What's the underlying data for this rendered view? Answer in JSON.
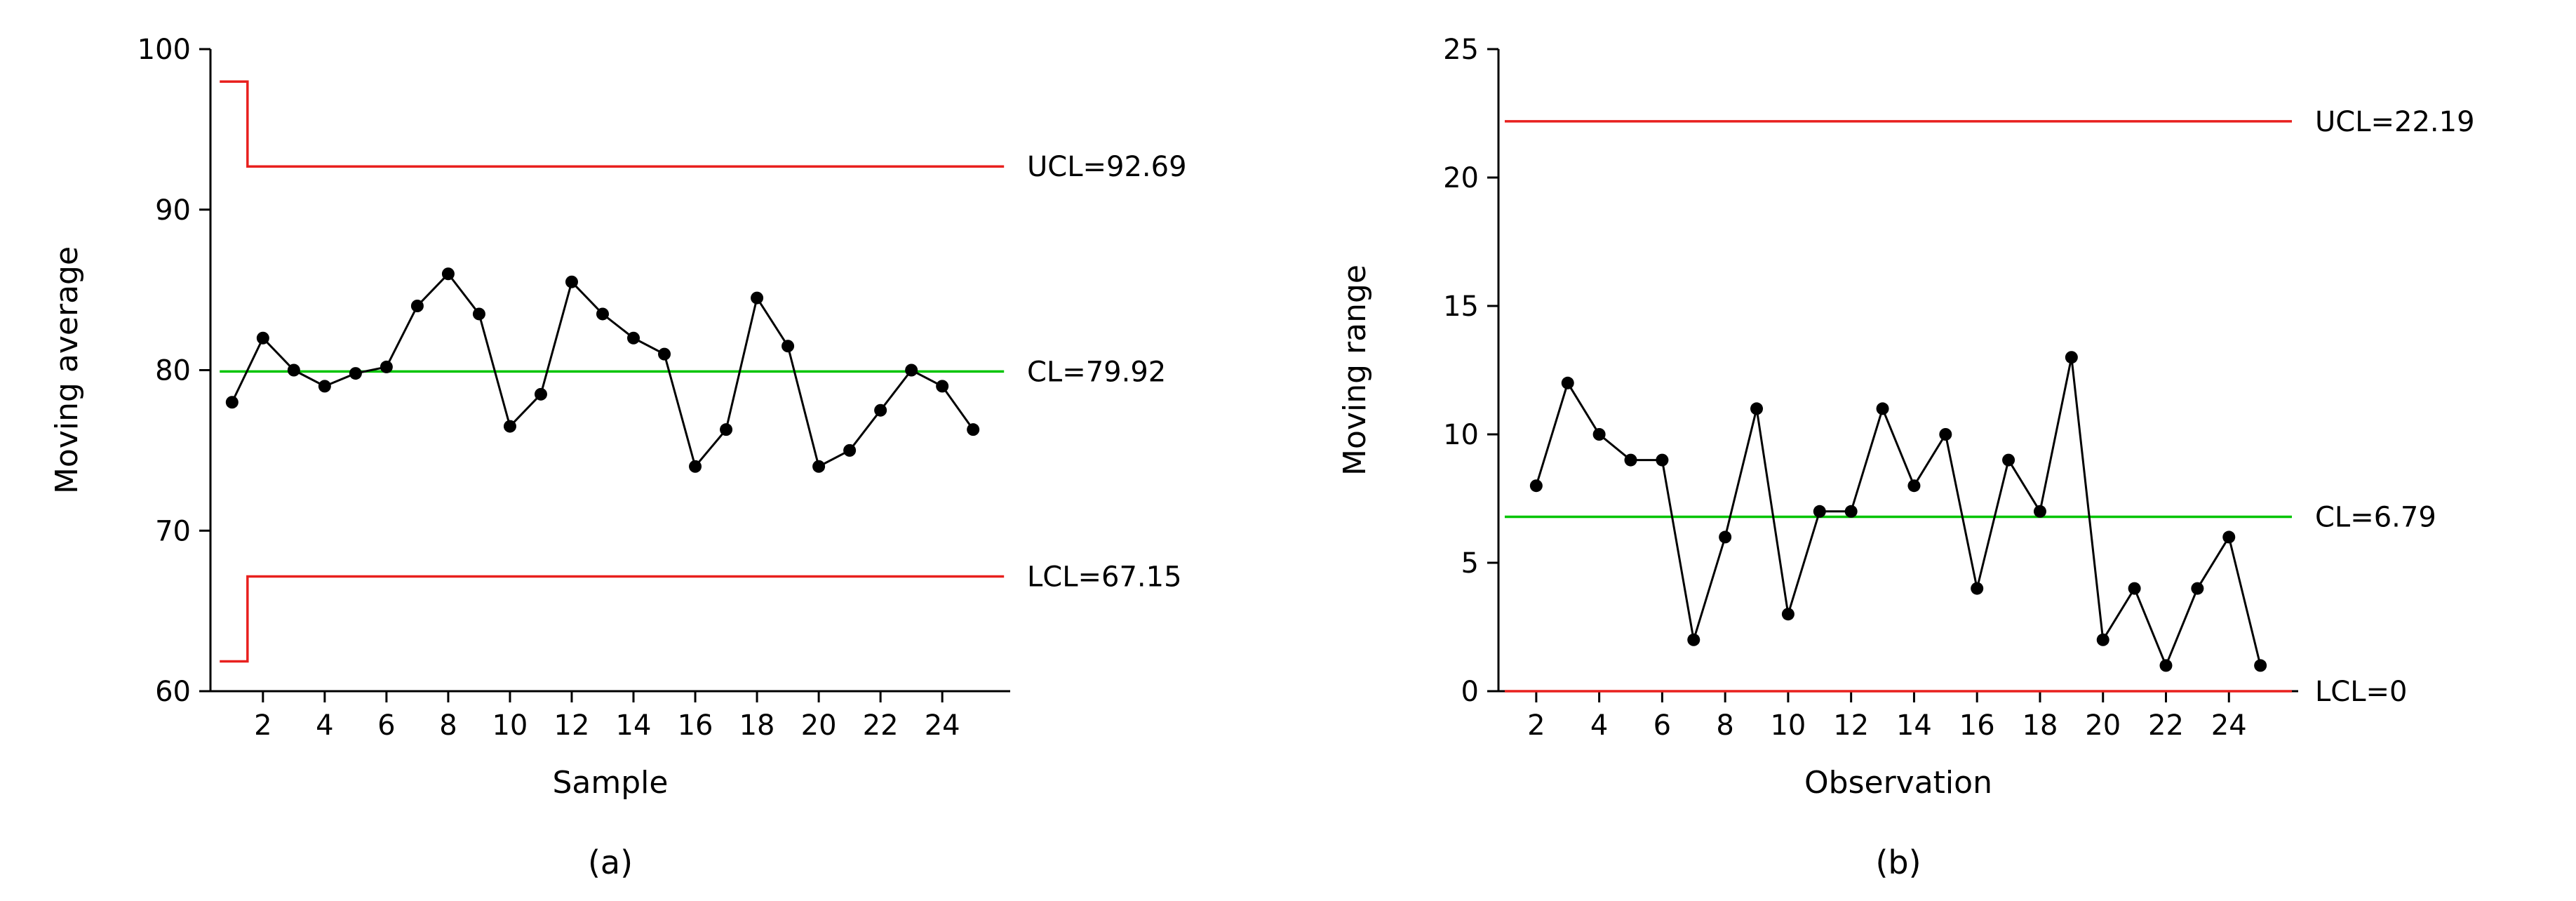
{
  "page": {
    "background": "#ffffff"
  },
  "colors": {
    "limit_line": "#e8201e",
    "center_line": "#00c400",
    "series": "#000000",
    "axis": "#000000"
  },
  "chart_data": [
    {
      "id": "a",
      "type": "line",
      "caption": "(a)",
      "xlabel": "Sample",
      "ylabel": "Moving average",
      "xlim": [
        0.3,
        26.2
      ],
      "ylim": [
        60,
        100
      ],
      "grid": false,
      "xticks": [
        2,
        4,
        6,
        8,
        10,
        12,
        14,
        16,
        18,
        20,
        22,
        24
      ],
      "yticks": [
        60,
        70,
        80,
        90,
        100
      ],
      "x": [
        1,
        2,
        3,
        4,
        5,
        6,
        7,
        8,
        9,
        10,
        11,
        12,
        13,
        14,
        15,
        16,
        17,
        18,
        19,
        20,
        21,
        22,
        23,
        24,
        25
      ],
      "y": [
        78,
        82,
        80,
        79,
        79.8,
        80.2,
        84,
        86,
        83.5,
        76.5,
        78.5,
        85.5,
        83.5,
        82,
        81,
        74,
        76.3,
        84.5,
        81.5,
        74,
        75,
        77.5,
        80,
        79,
        76.3
      ],
      "control_lines": [
        {
          "name": "UCL",
          "label": "UCL=92.69",
          "value": 92.69,
          "color": "#e8201e",
          "path": [
            [
              0.6,
              97.98
            ],
            [
              1.5,
              97.98
            ],
            [
              1.5,
              92.69
            ],
            [
              26.0,
              92.69
            ]
          ]
        },
        {
          "name": "CL",
          "label": "CL=79.92",
          "value": 79.92,
          "color": "#00c400",
          "path": [
            [
              0.6,
              79.92
            ],
            [
              26.0,
              79.92
            ]
          ]
        },
        {
          "name": "LCL",
          "label": "LCL=67.15",
          "value": 67.15,
          "color": "#e8201e",
          "path": [
            [
              0.6,
              61.86
            ],
            [
              1.5,
              61.86
            ],
            [
              1.5,
              67.15
            ],
            [
              26.0,
              67.15
            ]
          ]
        }
      ]
    },
    {
      "id": "b",
      "type": "line",
      "caption": "(b)",
      "xlabel": "Observation",
      "ylabel": "Moving range",
      "xlim": [
        0.8,
        26.2
      ],
      "ylim": [
        0,
        25
      ],
      "grid": false,
      "xticks": [
        2,
        4,
        6,
        8,
        10,
        12,
        14,
        16,
        18,
        20,
        22,
        24
      ],
      "yticks": [
        0,
        5,
        10,
        15,
        20,
        25
      ],
      "x": [
        2,
        3,
        4,
        5,
        6,
        7,
        8,
        9,
        10,
        11,
        12,
        13,
        14,
        15,
        16,
        17,
        18,
        19,
        20,
        21,
        22,
        23,
        24,
        25
      ],
      "y": [
        8,
        12,
        10,
        9,
        9,
        2,
        6,
        11,
        3,
        7,
        7,
        11,
        8,
        10,
        4,
        9,
        7,
        13,
        2,
        4,
        1,
        4,
        6,
        1
      ],
      "control_lines": [
        {
          "name": "UCL",
          "label": "UCL=22.19",
          "value": 22.19,
          "color": "#e8201e",
          "path": [
            [
              1.0,
              22.19
            ],
            [
              26.0,
              22.19
            ]
          ]
        },
        {
          "name": "CL",
          "label": "CL=6.79",
          "value": 6.79,
          "color": "#00c400",
          "path": [
            [
              1.0,
              6.79
            ],
            [
              26.0,
              6.79
            ]
          ]
        },
        {
          "name": "LCL",
          "label": "LCL=0",
          "value": 0,
          "color": "#e8201e",
          "path": [
            [
              1.0,
              0
            ],
            [
              26.0,
              0
            ]
          ]
        }
      ]
    }
  ]
}
